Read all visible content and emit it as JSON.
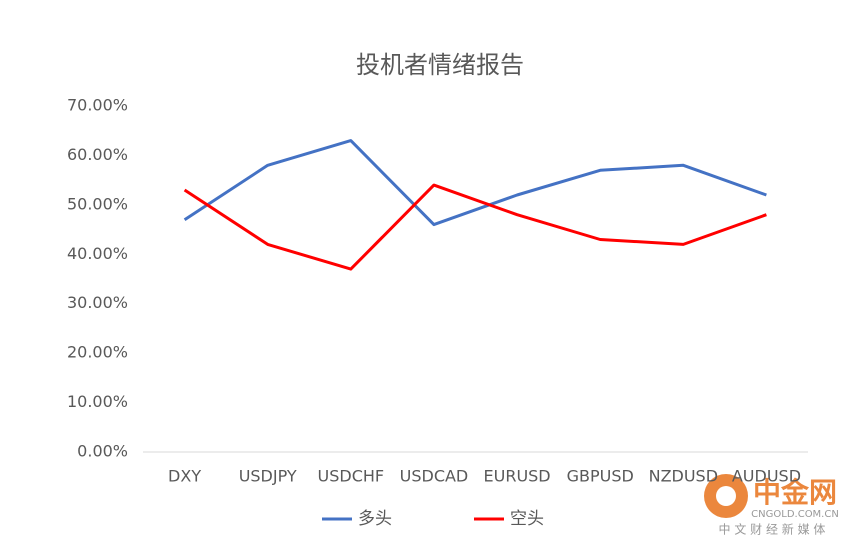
{
  "chart_data": {
    "type": "line",
    "title": "投机者情绪报告",
    "categories": [
      "DXY",
      "USDJPY",
      "USDCHF",
      "USDCAD",
      "EURUSD",
      "GBPUSD",
      "NZDUSD",
      "AUDUSD"
    ],
    "series": [
      {
        "name": "多头",
        "color": "#4472c4",
        "values": [
          47,
          58,
          63,
          46,
          52,
          57,
          58,
          52
        ]
      },
      {
        "name": "空头",
        "color": "#ff0000",
        "values": [
          53,
          42,
          37,
          54,
          48,
          43,
          42,
          48
        ]
      }
    ],
    "ylim": [
      0,
      70
    ],
    "yticks": [
      {
        "value": 0,
        "label": "0.00%"
      },
      {
        "value": 10,
        "label": "10.00%"
      },
      {
        "value": 20,
        "label": "20.00%"
      },
      {
        "value": 30,
        "label": "30.00%"
      },
      {
        "value": 40,
        "label": "40.00%"
      },
      {
        "value": 50,
        "label": "50.00%"
      },
      {
        "value": 60,
        "label": "60.00%"
      },
      {
        "value": 70,
        "label": "70.00%"
      }
    ],
    "grid": false,
    "legend": "bottom"
  },
  "watermark": {
    "logo": "中金网",
    "url": "CNGOLD.COM.CN",
    "tagline": "中 文 财 经 新 媒 体"
  }
}
